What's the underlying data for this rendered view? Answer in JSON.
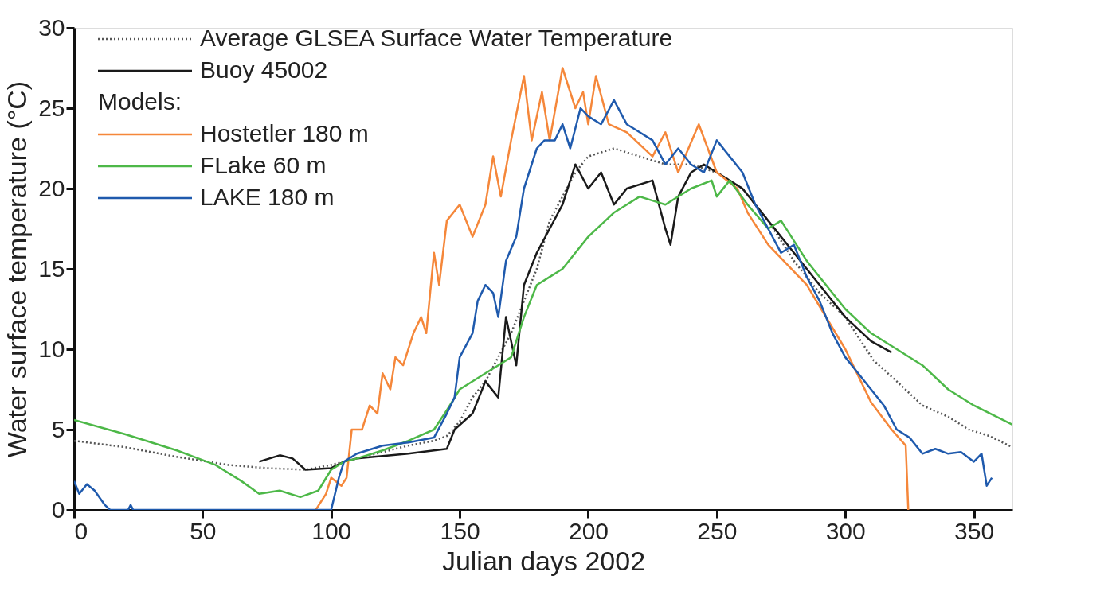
{
  "chart_data": {
    "type": "line",
    "xlabel": "Julian days 2002",
    "ylabel": "Water surface temperature (°C)",
    "xlim": [
      0,
      365
    ],
    "xticks": [
      0,
      50,
      100,
      150,
      200,
      250,
      300,
      350
    ],
    "ylim": [
      0,
      30
    ],
    "yticks": [
      0,
      5,
      10,
      15,
      20,
      25,
      30
    ],
    "grid": false,
    "legend": "top left",
    "marker": "none",
    "annotations": [
      "Models:"
    ],
    "series": [
      {
        "name": "Average GLSEA Surface Water Temperature",
        "color": "#555555",
        "line_style": "dotted",
        "x": [
          0,
          20,
          40,
          60,
          75,
          90,
          100,
          110,
          120,
          130,
          140,
          145,
          150,
          155,
          160,
          165,
          170,
          175,
          180,
          185,
          190,
          195,
          200,
          210,
          220,
          230,
          240,
          250,
          260,
          270,
          280,
          290,
          300,
          311,
          320,
          330,
          340,
          348,
          356,
          365
        ],
        "values": [
          4.3,
          3.9,
          3.3,
          2.8,
          2.6,
          2.5,
          2.8,
          3.2,
          3.6,
          4.0,
          4.3,
          4.6,
          5.5,
          7.0,
          8.0,
          9.5,
          11.0,
          13.0,
          15.0,
          18.0,
          19.5,
          21.0,
          22.0,
          22.5,
          22.0,
          21.5,
          21.5,
          21.0,
          20.0,
          18.0,
          15.5,
          13.5,
          12.0,
          9.3,
          8.0,
          6.5,
          5.8,
          5.0,
          4.6,
          3.9
        ]
      },
      {
        "name": "Buoy 45002",
        "color": "#1a1a1a",
        "line_style": "solid",
        "x": [
          72,
          80,
          85,
          90,
          100,
          105,
          110,
          130,
          145,
          148,
          155,
          160,
          165,
          168,
          172,
          175,
          180,
          185,
          190,
          195,
          200,
          205,
          210,
          215,
          225,
          230,
          232,
          235,
          240,
          245,
          250,
          255,
          260,
          270,
          280,
          290,
          300,
          310,
          318
        ],
        "values": [
          3.0,
          3.4,
          3.2,
          2.5,
          2.6,
          3.0,
          3.2,
          3.5,
          3.8,
          5.0,
          6.0,
          8.0,
          7.0,
          12.0,
          9.0,
          14.0,
          16.0,
          17.5,
          19.0,
          21.5,
          20.0,
          21.0,
          19.0,
          20.0,
          20.5,
          17.5,
          16.5,
          19.5,
          21.0,
          21.5,
          21.0,
          20.5,
          20.0,
          18.0,
          16.0,
          14.0,
          12.0,
          10.5,
          9.8
        ]
      },
      {
        "name": "Hostetler 180 m",
        "color": "#f5873a",
        "line_style": "solid",
        "x": [
          94,
          98,
          100,
          104,
          106,
          108,
          112,
          115,
          118,
          120,
          123,
          125,
          128,
          132,
          135,
          137,
          140,
          142,
          145,
          150,
          155,
          160,
          163,
          166,
          170,
          175,
          178,
          182,
          185,
          190,
          195,
          198,
          200,
          203,
          208,
          215,
          225,
          230,
          235,
          243,
          250,
          258,
          262,
          270,
          285,
          300,
          310,
          318,
          323.5,
          324.5
        ],
        "values": [
          0,
          1.0,
          2.0,
          1.5,
          2.0,
          5.0,
          5.0,
          6.5,
          6.0,
          8.5,
          7.5,
          9.5,
          9.0,
          11.0,
          12.0,
          11.0,
          16.0,
          14.0,
          18.0,
          19.0,
          17.0,
          19.0,
          22.0,
          19.5,
          23.0,
          27.0,
          23.0,
          26.0,
          23.0,
          27.5,
          25.0,
          26.0,
          24.0,
          27.0,
          24.0,
          23.5,
          22.0,
          23.5,
          21.0,
          24.0,
          21.0,
          20.0,
          18.5,
          16.5,
          14.0,
          10.0,
          6.7,
          5.0,
          4.0,
          0
        ]
      },
      {
        "name": "FLake 60 m",
        "color": "#4db848",
        "line_style": "solid",
        "x": [
          0,
          20,
          40,
          55,
          65,
          72,
          80,
          88,
          95,
          100,
          105,
          110,
          120,
          130,
          140,
          145,
          150,
          160,
          165,
          170,
          175,
          180,
          185,
          190,
          195,
          200,
          210,
          215,
          220,
          230,
          240,
          248,
          250,
          255,
          262,
          270,
          275,
          285,
          300,
          310,
          320,
          330,
          340,
          350,
          365
        ],
        "values": [
          5.6,
          4.7,
          3.7,
          2.8,
          1.8,
          1.0,
          1.2,
          0.8,
          1.2,
          2.5,
          3.0,
          3.2,
          3.7,
          4.3,
          5.0,
          6.2,
          7.5,
          8.5,
          9.0,
          9.5,
          12.0,
          14.0,
          14.5,
          15.0,
          16.0,
          17.0,
          18.5,
          19.0,
          19.5,
          19.0,
          20.0,
          20.5,
          19.5,
          20.5,
          19.0,
          17.5,
          18.0,
          15.5,
          12.5,
          11.0,
          10.0,
          9.0,
          7.5,
          6.5,
          5.3
        ]
      },
      {
        "name": "LAKE 180 m",
        "color": "#1f5aad",
        "line_style": "solid",
        "x": [
          0,
          2,
          5,
          8,
          12,
          14,
          21,
          22,
          23,
          24,
          98,
          100,
          103,
          105,
          110,
          120,
          130,
          140,
          145,
          148,
          150,
          155,
          157,
          160,
          163,
          165,
          168,
          172,
          175,
          180,
          183,
          187,
          190,
          193,
          197,
          200,
          205,
          210,
          215,
          220,
          225,
          230,
          235,
          240,
          245,
          250,
          255,
          260,
          265,
          270,
          275,
          280,
          285,
          290,
          295,
          300,
          305,
          310,
          315,
          320,
          325,
          330,
          335,
          340,
          345,
          350,
          353,
          355,
          357
        ],
        "values": [
          1.8,
          1.0,
          1.6,
          1.2,
          0.3,
          0,
          0,
          0.3,
          0,
          0,
          0,
          0,
          2.0,
          3.0,
          3.5,
          4.0,
          4.2,
          4.5,
          6.0,
          7.0,
          9.5,
          11.0,
          13.0,
          14.0,
          13.5,
          12.0,
          15.5,
          17.0,
          20.0,
          22.5,
          23.0,
          23.0,
          24.0,
          22.5,
          25.0,
          24.5,
          24.0,
          25.5,
          24.0,
          23.5,
          23.0,
          21.5,
          22.5,
          21.5,
          21.0,
          23.0,
          22.0,
          21.0,
          19.0,
          17.5,
          16.0,
          16.5,
          14.5,
          13.0,
          11.0,
          9.5,
          8.5,
          7.5,
          6.5,
          5.0,
          4.5,
          3.5,
          3.8,
          3.5,
          3.6,
          3.0,
          3.5,
          1.5,
          2.0
        ]
      }
    ]
  }
}
